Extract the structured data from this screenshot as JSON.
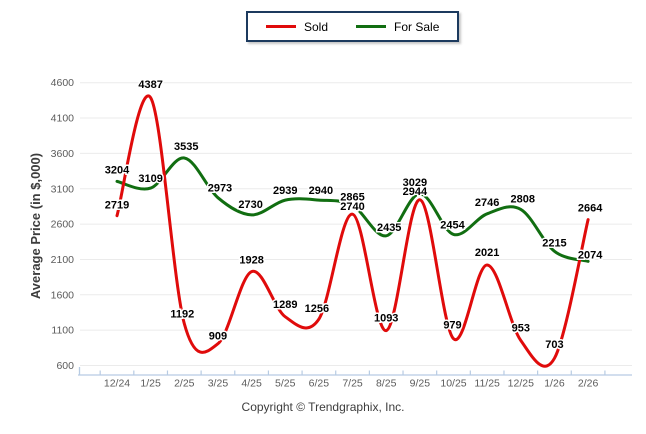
{
  "chart_data": {
    "type": "line",
    "title": "",
    "xlabel": "",
    "ylabel": "Average Price (in $,000)",
    "categories": [
      "12/24",
      "1/25",
      "2/25",
      "3/25",
      "4/25",
      "5/25",
      "6/25",
      "7/25",
      "8/25",
      "9/25",
      "10/25",
      "11/25",
      "12/25",
      "1/26",
      "2/26"
    ],
    "series": [
      {
        "name": "Sold",
        "color": "#e00b0b",
        "values": [
          2719,
          4387,
          1192,
          909,
          1928,
          1289,
          1256,
          2740,
          1093,
          2944,
          979,
          2021,
          953,
          703,
          2664
        ]
      },
      {
        "name": "For Sale",
        "color": "#116e11",
        "values": [
          3204,
          3109,
          3535,
          2973,
          2730,
          2939,
          2940,
          2865,
          2435,
          3029,
          2454,
          2746,
          2808,
          2215,
          2074
        ]
      }
    ],
    "ylim": [
      600,
      4600
    ],
    "ytick_step": 500,
    "grid": "horizontal",
    "smoothing": "spline",
    "data_labels": true,
    "legend_position": "top-center"
  },
  "legend": {
    "items": [
      {
        "label": "Sold"
      },
      {
        "label": "For Sale"
      }
    ]
  },
  "footer": {
    "copyright": "Copyright © Trendgraphix, Inc."
  },
  "colors": {
    "axis": "#b7cbe3",
    "grid": "#ebebeb",
    "tick_label": "#5b5b5b",
    "axis_title": "#3d3d3d",
    "data_label": "#000000",
    "legend_border": "#1c3a5e"
  }
}
